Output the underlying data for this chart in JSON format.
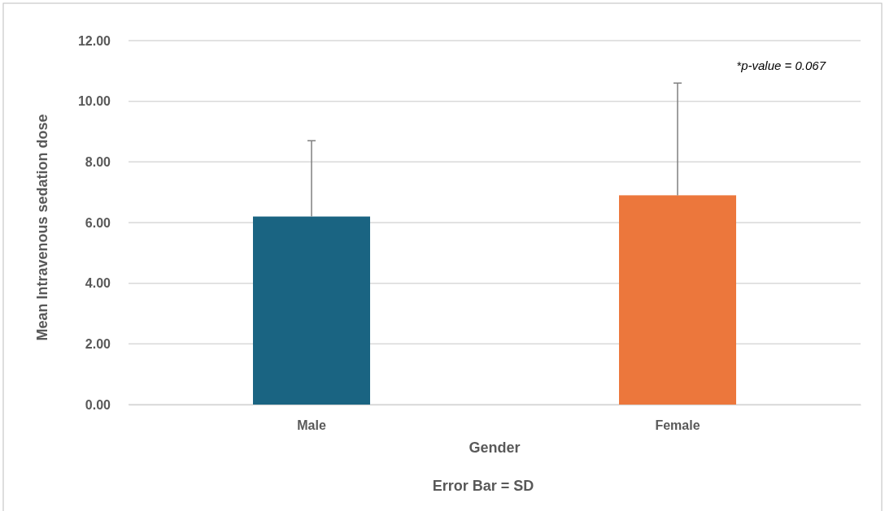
{
  "chart_data": {
    "type": "bar",
    "xlabel": "Gender",
    "ylabel": "Mean Intravenous sedation dose",
    "categories": [
      "Male",
      "Female"
    ],
    "series": [
      {
        "values": [
          6.2,
          6.9
        ],
        "colors": [
          "#1a6482",
          "#ec773c"
        ],
        "errors": [
          [
            6.2,
            8.7
          ],
          [
            6.9,
            10.6
          ]
        ]
      }
    ],
    "ylim": [
      0,
      12
    ],
    "yticks": [
      {
        "value": 0,
        "label": "0.00"
      },
      {
        "value": 2,
        "label": "2.00"
      },
      {
        "value": 4,
        "label": "4.00"
      },
      {
        "value": 6,
        "label": "6.00"
      },
      {
        "value": 8,
        "label": "8.00"
      },
      {
        "value": 10,
        "label": "10.00"
      },
      {
        "value": 12,
        "label": "12.00"
      }
    ],
    "grid": "y",
    "annotations": [
      "*p-value = 0.067",
      "Error Bar = SD"
    ]
  }
}
